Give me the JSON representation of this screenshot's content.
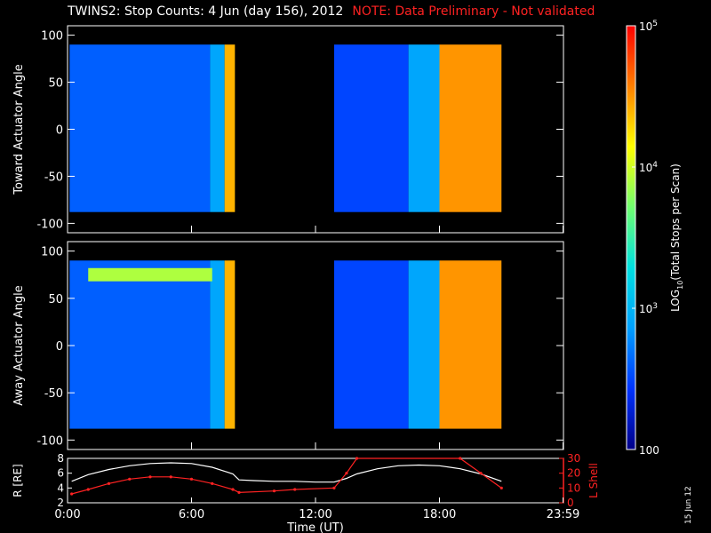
{
  "header": {
    "title": "TWINS2: Stop Counts:  4 Jun (day 156), 2012",
    "note": "NOTE: Data Preliminary - Not validated"
  },
  "stamp": "15 Jun 12",
  "colors": {
    "background": "#000000",
    "axes": "#ffffff",
    "note": "#ff2222",
    "lshell": "#ff2222",
    "radius": "#ffffff",
    "colormap": [
      "#000088",
      "#0033ff",
      "#00a0ff",
      "#00e0e0",
      "#70ff70",
      "#ffff00",
      "#ff8000",
      "#ff0000"
    ]
  },
  "chart_data": [
    {
      "type": "heatmap",
      "panel": "toward",
      "ylabel": "Toward Actuator Angle",
      "ylim": [
        -110,
        110
      ],
      "yticks": [
        100,
        50,
        0,
        -50,
        -100
      ],
      "xlim_hours": [
        0,
        24
      ],
      "data_y_range": [
        -88,
        90
      ],
      "data_segments_hours": [
        [
          0.1,
          8.1
        ],
        [
          12.9,
          21.0
        ]
      ],
      "approx_log10_values": [
        {
          "from_hour": 0.1,
          "to_hour": 6.9,
          "value": 2.6
        },
        {
          "from_hour": 6.9,
          "to_hour": 7.6,
          "value": 2.9
        },
        {
          "from_hour": 7.6,
          "to_hour": 8.1,
          "value": 4.4
        },
        {
          "from_hour": 12.9,
          "to_hour": 16.5,
          "value": 2.5
        },
        {
          "from_hour": 16.5,
          "to_hour": 18.0,
          "value": 2.9
        },
        {
          "from_hour": 18.0,
          "to_hour": 21.0,
          "value": 4.5
        }
      ]
    },
    {
      "type": "heatmap",
      "panel": "away",
      "ylabel": "Away Actuator Angle",
      "ylim": [
        -110,
        110
      ],
      "yticks": [
        100,
        50,
        0,
        -50,
        -100
      ],
      "xlim_hours": [
        0,
        24
      ],
      "data_y_range": [
        -88,
        90
      ],
      "data_segments_hours": [
        [
          0.1,
          8.1
        ],
        [
          12.9,
          21.0
        ]
      ],
      "approx_log10_values": [
        {
          "from_hour": 0.1,
          "to_hour": 6.9,
          "value": 2.6
        },
        {
          "from_hour": 6.9,
          "to_hour": 7.6,
          "value": 2.9
        },
        {
          "from_hour": 7.6,
          "to_hour": 8.1,
          "value": 4.4
        },
        {
          "from_hour": 12.9,
          "to_hour": 16.5,
          "value": 2.5
        },
        {
          "from_hour": 16.5,
          "to_hour": 18.0,
          "value": 2.9
        },
        {
          "from_hour": 18.0,
          "to_hour": 21.0,
          "value": 4.5
        }
      ],
      "feature": {
        "note": "enhanced band near angle 70-80",
        "from_hour": 1.0,
        "to_hour": 7.0,
        "y": [
          68,
          82
        ],
        "value": 3.9
      }
    },
    {
      "type": "line",
      "panel": "orbit",
      "xlabel": "Time (UT)",
      "xticklabels": [
        "0:00",
        "6:00",
        "12:00",
        "18:00",
        "23:59"
      ],
      "xtick_hours": [
        0,
        6,
        12,
        18,
        23.98
      ],
      "xlim_hours": [
        0,
        24
      ],
      "left_axis": {
        "label": "R [RE]",
        "ylim": [
          2,
          8
        ],
        "yticks": [
          2,
          4,
          6,
          8
        ]
      },
      "right_axis": {
        "label": "L Shell",
        "ylim": [
          0,
          30
        ],
        "yticks": [
          0,
          10,
          20,
          30
        ]
      },
      "series": [
        {
          "axis": "left",
          "x": [
            0.2,
            1,
            2,
            3,
            4,
            5,
            6,
            7,
            8,
            8.3,
            9,
            10,
            11,
            12,
            12.9,
            13.5,
            14,
            15,
            16,
            17,
            18,
            19,
            20,
            21
          ],
          "y": [
            4.9,
            5.8,
            6.5,
            7.0,
            7.3,
            7.4,
            7.3,
            6.8,
            5.9,
            5.1,
            5.0,
            4.9,
            4.9,
            4.8,
            4.8,
            5.3,
            5.9,
            6.6,
            7.0,
            7.1,
            7.0,
            6.6,
            5.9,
            4.9
          ]
        },
        {
          "axis": "right",
          "x": [
            0.2,
            1,
            2,
            3,
            4,
            5,
            6,
            7,
            8,
            8.3,
            10,
            11,
            12.9,
            13.5,
            14,
            19,
            20,
            21
          ],
          "y": [
            6,
            9,
            13,
            16,
            17.5,
            17.5,
            16,
            13,
            9,
            7,
            8,
            9,
            10,
            20,
            30,
            30,
            20,
            10
          ]
        }
      ]
    },
    {
      "type": "colorbar",
      "label": "LOG10(Total Stops per Scan)",
      "scale": "log",
      "range": [
        100,
        100000
      ],
      "ticklabels": [
        "100",
        "10^3",
        "10^4",
        "10^5"
      ],
      "tick_values": [
        100,
        1000,
        10000,
        100000
      ]
    }
  ]
}
